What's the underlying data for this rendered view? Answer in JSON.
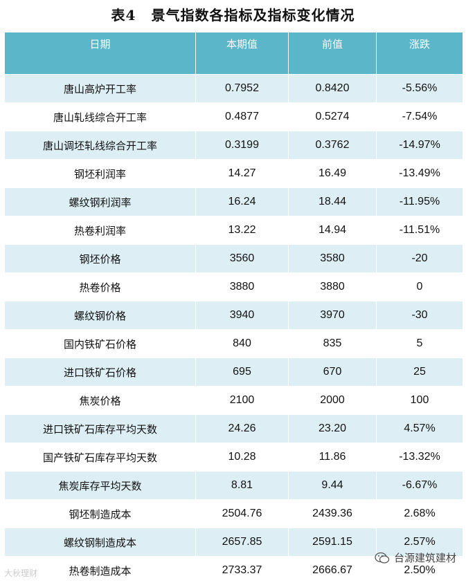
{
  "title": {
    "number": "表4",
    "text": "景气指数各指标及指标变化情况"
  },
  "table": {
    "headers": [
      "日期",
      "本期值",
      "前值",
      "涨跌"
    ],
    "rows": [
      [
        "唐山高炉开工率",
        "0.7952",
        "0.8420",
        "-5.56%"
      ],
      [
        "唐山轧线综合开工率",
        "0.4877",
        "0.5274",
        "-7.54%"
      ],
      [
        "唐山调坯轧线综合开工率",
        "0.3199",
        "0.3762",
        "-14.97%"
      ],
      [
        "钢坯利润率",
        "14.27",
        "16.49",
        "-13.49%"
      ],
      [
        "螺纹钢利润率",
        "16.24",
        "18.44",
        "-11.95%"
      ],
      [
        "热卷利润率",
        "13.22",
        "14.94",
        "-11.51%"
      ],
      [
        "钢坯价格",
        "3560",
        "3580",
        "-20"
      ],
      [
        "热卷价格",
        "3880",
        "3880",
        "0"
      ],
      [
        "螺纹钢价格",
        "3940",
        "3970",
        "-30"
      ],
      [
        "国内铁矿石价格",
        "840",
        "835",
        "5"
      ],
      [
        "进口铁矿石价格",
        "695",
        "670",
        "25"
      ],
      [
        "焦炭价格",
        "2100",
        "2000",
        "100"
      ],
      [
        "进口铁矿石库存平均天数",
        "24.26",
        "23.20",
        "4.57%"
      ],
      [
        "国产铁矿石库存平均天数",
        "10.28",
        "11.86",
        "-13.32%"
      ],
      [
        "焦炭库存平均天数",
        "8.81",
        "9.44",
        "-6.67%"
      ],
      [
        "钢坯制造成本",
        "2504.76",
        "2439.36",
        "2.68%"
      ],
      [
        "螺纹钢制造成本",
        "2657.85",
        "2591.15",
        "2.57%"
      ],
      [
        "热卷制造成本",
        "2733.37",
        "2666.67",
        "2.50%"
      ]
    ]
  },
  "watermark": {
    "left": "大秋理财",
    "right": "台源建筑建材"
  }
}
